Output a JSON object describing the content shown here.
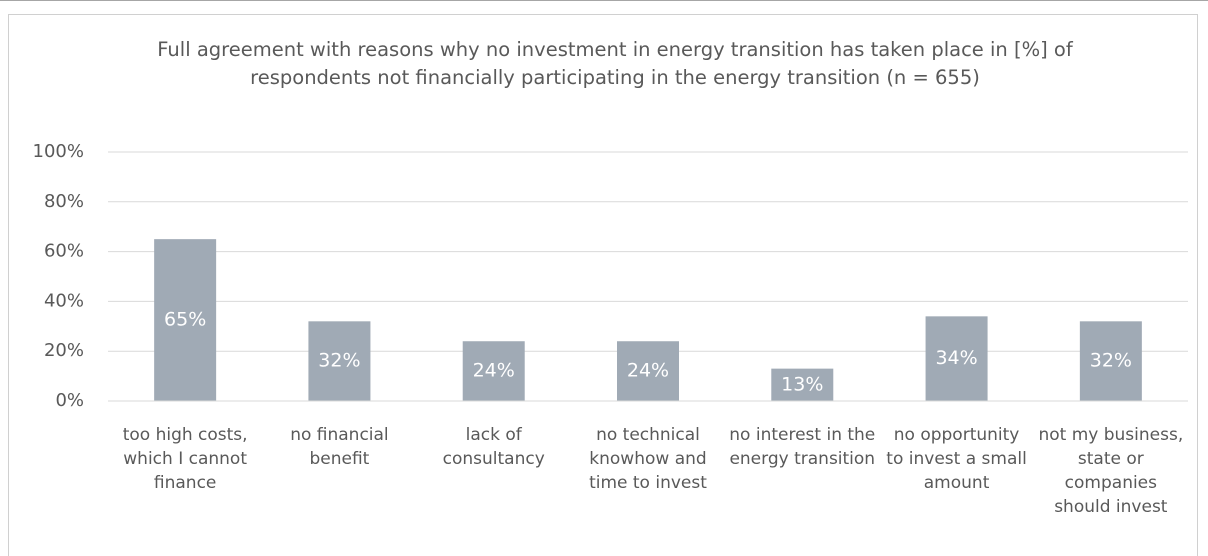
{
  "chart_data": {
    "type": "bar",
    "title": "Full agreement with reasons why no investment in energy transition has taken place in [%] of respondents not financially participating in the energy transition (n = 655)",
    "categories": [
      "too high costs, which I cannot finance",
      "no financial benefit",
      "lack of consultancy",
      "no technical knowhow and time to invest",
      "no interest in the energy transition",
      "no opportunity to invest a small amount",
      "not my business, state or companies should invest"
    ],
    "values": [
      65,
      32,
      24,
      24,
      13,
      34,
      32
    ],
    "value_labels": [
      "65%",
      "32%",
      "24%",
      "24%",
      "13%",
      "34%",
      "32%"
    ],
    "color": "#a0aab5",
    "ylim": [
      0,
      100
    ],
    "yticks": [
      {
        "value": 0,
        "label": "0%"
      },
      {
        "value": 20,
        "label": "20%"
      },
      {
        "value": 40,
        "label": "40%"
      },
      {
        "value": 60,
        "label": "60%"
      },
      {
        "value": 80,
        "label": "80%"
      },
      {
        "value": 100,
        "label": "100%"
      }
    ],
    "grid": true
  }
}
